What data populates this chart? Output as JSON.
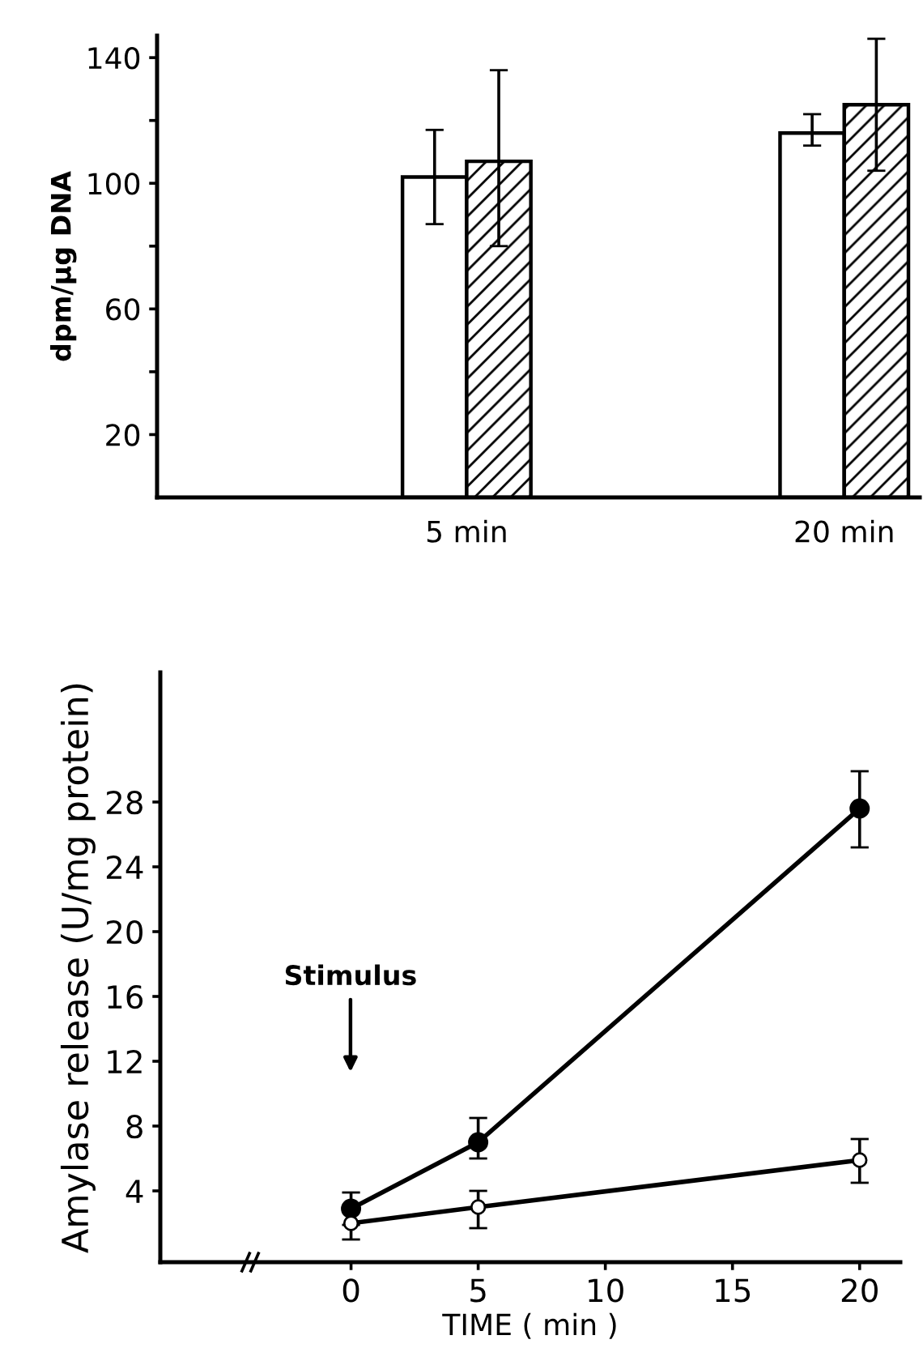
{
  "chart_data": [
    {
      "type": "bar",
      "ylabel": "dpm/µg DNA",
      "categories": [
        "5 min",
        "20 min"
      ],
      "series": [
        {
          "color": "#ffffff",
          "values": [
            102,
            116
          ],
          "errors": [
            15,
            [
              112,
              122
            ]
          ]
        },
        {
          "color": "#000000",
          "values": [
            107,
            125
          ],
          "errors": [
            [
              80,
              136
            ],
            [
              104,
              146
            ]
          ]
        }
      ],
      "ylim": [
        0,
        147
      ],
      "yticks": [
        20,
        {
          "value": 40,
          "label": null
        },
        60,
        {
          "value": 80,
          "label": null
        },
        100,
        {
          "value": 120,
          "label": null
        },
        140
      ],
      "grid": false,
      "legend": false
    },
    {
      "type": "line",
      "xlabel": "TIME ( min )",
      "ylabel": "Amylase release (U/mg protein)",
      "x": [
        0,
        5,
        20
      ],
      "series": [
        {
          "color": "#000000",
          "values": [
            2.9,
            7.0,
            27.6
          ],
          "errors": [
            1,
            [
              6,
              8.5
            ],
            [
              25.2,
              29.9
            ]
          ]
        },
        {
          "color": "#ffffff",
          "values": [
            2.0,
            3.0,
            5.9
          ],
          "errors": [
            1,
            [
              1.7,
              4
            ],
            [
              4.5,
              7.2
            ]
          ]
        }
      ],
      "xlim": [
        -7.5,
        21.6
      ],
      "xticks": [
        0,
        5,
        10,
        15,
        20
      ],
      "ylim": [
        -0.4,
        36
      ],
      "yticks": [
        4,
        8,
        12,
        16,
        20,
        24,
        28
      ],
      "annotations": [
        "Stimulus"
      ],
      "marker": "circle",
      "line_style": "solid",
      "grid": false,
      "legend": false
    }
  ]
}
